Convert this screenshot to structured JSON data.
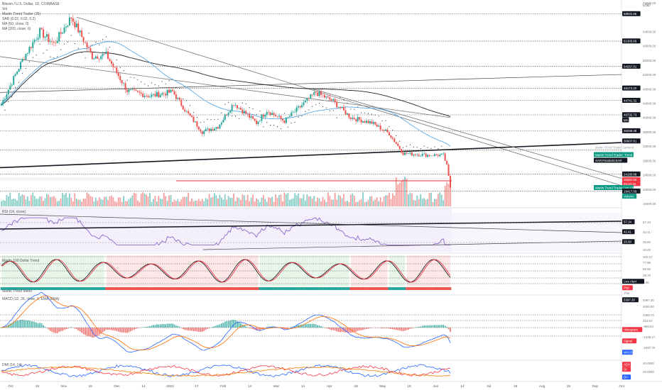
{
  "header": {
    "symbol_title": "Bitcoin / U.S. Dollar, 1D, COINBASE",
    "indicators": [
      "Vol",
      "Martin Trend Trader (35)",
      "SAR (0.02, 0.02, 0.2)",
      "MA (50, close, 0)",
      "MA (200, close, 0)"
    ],
    "currency": "USD"
  },
  "price_axis": {
    "ticks": [
      "72000.00",
      "64000.00",
      "60000.00",
      "56000.00",
      "52000.00",
      "48000.00",
      "44000.00",
      "40000.00",
      "36000.00",
      "32000.00",
      "28000.00",
      "24000.00",
      "20000.00",
      "16000.00"
    ],
    "badges": [
      {
        "text": "68932.86",
        "color": "#131722",
        "ytick": 68932
      },
      {
        "text": "61305.66",
        "color": "#131722",
        "ytick": 61305
      },
      {
        "text": "54257.81",
        "color": "#131722",
        "ytick": 54257
      },
      {
        "text": "48173.20",
        "color": "#131722",
        "ytick": 48173
      },
      {
        "text": "44741.32",
        "color": "#131722",
        "ytick": 44741
      },
      {
        "text": "40732.73",
        "color": "#131722",
        "ytick": 40732
      },
      {
        "text": "MA",
        "color": "#131722",
        "ytick": 39300
      },
      {
        "text": "36258.48",
        "color": "#131722",
        "ytick": 36258
      },
      {
        "text": "30907.81",
        "color": "#131722",
        "ytick": 33400
      },
      {
        "text": "Martin Trend Trader: Trend Line",
        "color": "#089981",
        "ytick": 29600
      },
      {
        "text": "SAR:ParabolicSAR",
        "color": "#131722",
        "ytick": 28000
      },
      {
        "text": "24180.88",
        "color": "#131722",
        "ytick": 24180
      },
      {
        "text": "20451.56",
        "color": "#f23645",
        "ytick": 22600
      },
      {
        "text": "04:24:15",
        "color": "#f23645",
        "ytick": 21500
      },
      {
        "text": "Martin Trend Trader Live Alert",
        "color": "#089981",
        "ytick": 20400
      },
      {
        "text": "19417.09",
        "color": "#131722",
        "ytick": 19417
      },
      {
        "text": "Volume",
        "color": "#089981",
        "ytick": 18000
      }
    ],
    "ghost_labels": [
      "Martin Trend Trader: Uptrend"
    ]
  },
  "time_axis": {
    "labels": [
      "Oct",
      "18",
      "Nov",
      "15",
      "Dec",
      "14",
      "2022",
      "17",
      "Feb",
      "14",
      "Mar",
      "14",
      "Apr",
      "18",
      "May",
      "16",
      "Jun",
      "14",
      "Jul",
      "18",
      "Aug",
      "15",
      "Sep",
      "Oct"
    ]
  },
  "rsi_panel": {
    "title": "RSI (14, close)",
    "ticks": [
      "57.34",
      "42.41",
      "25.60",
      "20.00"
    ],
    "badges": [
      {
        "text": "57.34",
        "color": "#131722"
      },
      {
        "text": "42.41",
        "color": "#131722"
      },
      {
        "text": "25.60",
        "color": "#131722"
      }
    ]
  },
  "martin_panel": {
    "title": "Martin 100 Dollar Trend",
    "footer_title": "Martin Trend Meter",
    "ticks": [
      "102.07",
      "77.95",
      "55.55",
      "29.70",
      "0.00"
    ],
    "badges": [
      {
        "text": "Live Alert",
        "color": "#131722"
      },
      {
        "text": "Plot",
        "color": "#f23645"
      }
    ],
    "plot_label": "Plot"
  },
  "macd_panel": {
    "title": "MACD (12, 26, close, 9, EMA, EMA)",
    "ticks": [
      "5397.30",
      "4000.00",
      "2366.74",
      "312.67",
      "-868.54",
      "-1435.17",
      "-2497.70"
    ],
    "badges": [
      {
        "text": "5397.30",
        "color": "#131722"
      },
      {
        "text": "Histogram",
        "color": "#f23645"
      },
      {
        "text": "Signal",
        "color": "#f23645"
      },
      {
        "text": "MACD",
        "color": "#2962ff"
      }
    ]
  },
  "dmi_panel": {
    "title": "DMI (14, 14)",
    "ticks": [
      "40.0000",
      "20.0000"
    ],
    "badges": [
      {
        "text": "ADX",
        "color": "#f23645"
      },
      {
        "text": "DI-",
        "color": "#f23645"
      },
      {
        "text": "DI+",
        "color": "#2962ff"
      }
    ]
  },
  "colors": {
    "up": "#26a69a",
    "down": "#ef5350",
    "ma50": "#5aa9e6",
    "ma200": "#222222",
    "rsi": "#7e57c2",
    "macd": "#2962ff",
    "signal": "#ff6d00",
    "dmi_plus": "#2962ff",
    "dmi_minus": "#f23645",
    "adx": "#f57c00",
    "red_line": "#f23645"
  },
  "chart_data": {
    "type": "candlestick",
    "interval": "1D",
    "x_range": [
      "2021-10-01",
      "2022-10-01"
    ],
    "ylim": [
      16000,
      72000
    ],
    "monthly_approx_close": [
      {
        "x": "2021-10-01",
        "close": 43800
      },
      {
        "x": "2021-10-20",
        "close": 64000
      },
      {
        "x": "2021-11-10",
        "close": 68000
      },
      {
        "x": "2021-12-01",
        "close": 57000
      },
      {
        "x": "2021-12-20",
        "close": 47000
      },
      {
        "x": "2022-01-10",
        "close": 42000
      },
      {
        "x": "2022-01-24",
        "close": 36000
      },
      {
        "x": "2022-02-10",
        "close": 44000
      },
      {
        "x": "2022-03-01",
        "close": 39000
      },
      {
        "x": "2022-03-28",
        "close": 47000
      },
      {
        "x": "2022-04-20",
        "close": 40000
      },
      {
        "x": "2022-05-12",
        "close": 29000
      },
      {
        "x": "2022-06-01",
        "close": 31000
      },
      {
        "x": "2022-06-10",
        "close": 29000
      },
      {
        "x": "2022-06-15",
        "close": 20451
      }
    ],
    "horizontal_levels": [
      68932.86,
      61305.66,
      54257.81,
      48173.2,
      44741.32,
      40732.73,
      36258.48,
      30907.81,
      24180.88,
      19417.09
    ]
  }
}
